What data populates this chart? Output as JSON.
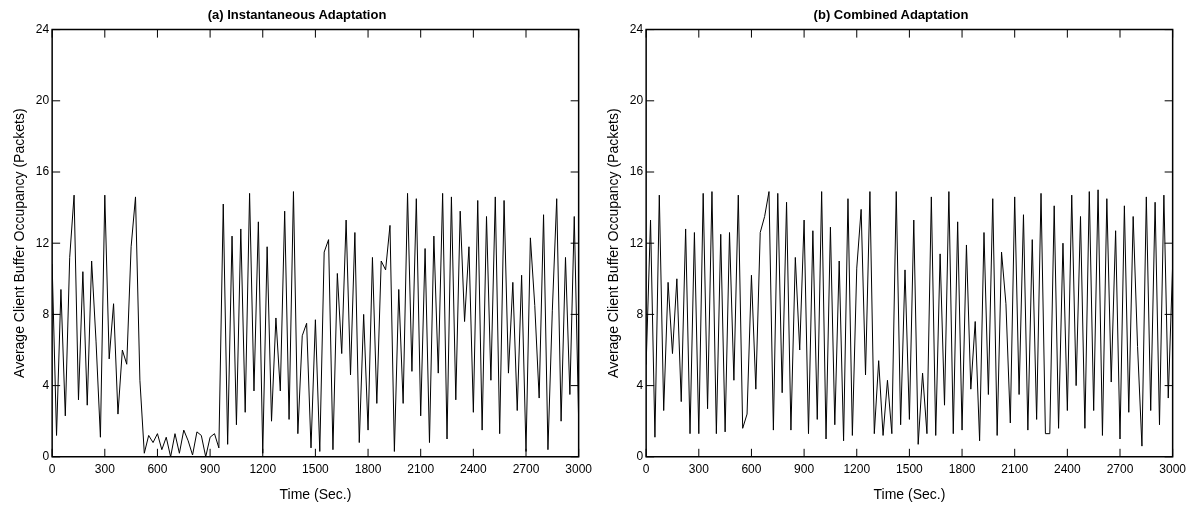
{
  "chart_data": [
    {
      "type": "line",
      "title": "(a) Instantaneous Adaptation",
      "xlabel": "Time (Sec.)",
      "ylabel": "Average Client Buffer Occupancy (Packets)",
      "color": "#000000",
      "marker": "none",
      "xlim": [
        0,
        3000
      ],
      "xticks": [
        0,
        300,
        600,
        900,
        1200,
        1500,
        1800,
        2100,
        2400,
        2700,
        3000
      ],
      "ylim": [
        0,
        24
      ],
      "yticks": [
        0,
        4,
        8,
        12,
        16,
        20,
        24
      ],
      "x": [
        0,
        25,
        50,
        75,
        100,
        125,
        150,
        175,
        200,
        225,
        250,
        275,
        300,
        325,
        350,
        375,
        400,
        425,
        450,
        475,
        500,
        525,
        550,
        575,
        600,
        625,
        650,
        675,
        700,
        725,
        750,
        775,
        800,
        825,
        850,
        875,
        900,
        925,
        950,
        975,
        1000,
        1025,
        1050,
        1075,
        1100,
        1125,
        1150,
        1175,
        1200,
        1225,
        1250,
        1275,
        1300,
        1325,
        1350,
        1375,
        1400,
        1425,
        1450,
        1475,
        1500,
        1525,
        1550,
        1575,
        1600,
        1625,
        1650,
        1675,
        1700,
        1725,
        1750,
        1775,
        1800,
        1825,
        1850,
        1875,
        1900,
        1925,
        1950,
        1975,
        2000,
        2025,
        2050,
        2075,
        2100,
        2125,
        2150,
        2175,
        2200,
        2225,
        2250,
        2275,
        2300,
        2325,
        2350,
        2375,
        2400,
        2425,
        2450,
        2475,
        2500,
        2525,
        2550,
        2575,
        2600,
        2625,
        2650,
        2675,
        2700,
        2725,
        2750,
        2775,
        2800,
        2825,
        2850,
        2875,
        2900,
        2925,
        2950,
        2975,
        3000
      ],
      "values": [
        10.8,
        1.2,
        9.4,
        2.3,
        11.2,
        14.7,
        3.2,
        10.4,
        2.9,
        11,
        6.5,
        1.1,
        14.7,
        5.5,
        8.6,
        2.4,
        6,
        5.2,
        11.8,
        14.6,
        4.3,
        0.2,
        1.2,
        0.8,
        1.3,
        0.4,
        1.1,
        0,
        1.3,
        0.2,
        1.5,
        0.9,
        0.1,
        1.4,
        1.2,
        0,
        1.1,
        1.3,
        0.5,
        14.2,
        0.7,
        12.4,
        1.8,
        12.8,
        2.5,
        14.8,
        3.7,
        13.2,
        0.2,
        11.8,
        2,
        7.8,
        3.7,
        13.8,
        2.1,
        14.9,
        1.3,
        6.8,
        7.5,
        0.5,
        7.7,
        0.3,
        11.5,
        12.2,
        0.4,
        10.3,
        5.8,
        13.3,
        4.6,
        12.6,
        0.8,
        8,
        1.5,
        11.2,
        3,
        11,
        10.5,
        13,
        0.3,
        9.4,
        3,
        14.8,
        4.8,
        14.5,
        2.3,
        11.7,
        0.8,
        12.4,
        4.7,
        14.8,
        1,
        14.6,
        3.2,
        13.8,
        7.6,
        11.8,
        2.5,
        14.4,
        1.5,
        13.5,
        4.3,
        14.6,
        1.3,
        14.4,
        4.7,
        9.8,
        2.6,
        10.2,
        0.3,
        12.3,
        8.5,
        3.3,
        13.6,
        0.4,
        8.2,
        14.5,
        2,
        11.2,
        3.5,
        13.5,
        2
      ]
    },
    {
      "type": "line",
      "title": "(b) Combined Adaptation",
      "xlabel": "Time (Sec.)",
      "ylabel": "Average Client Buffer Occupancy (Packets)",
      "color": "#000000",
      "marker": "none",
      "xlim": [
        0,
        3000
      ],
      "xticks": [
        0,
        300,
        600,
        900,
        1200,
        1500,
        1800,
        2100,
        2400,
        2700,
        3000
      ],
      "ylim": [
        0,
        24
      ],
      "yticks": [
        0,
        4,
        8,
        12,
        16,
        20,
        24
      ],
      "x": [
        0,
        25,
        50,
        75,
        100,
        125,
        150,
        175,
        200,
        225,
        250,
        275,
        300,
        325,
        350,
        375,
        400,
        425,
        450,
        475,
        500,
        525,
        550,
        575,
        600,
        625,
        650,
        675,
        700,
        725,
        750,
        775,
        800,
        825,
        850,
        875,
        900,
        925,
        950,
        975,
        1000,
        1025,
        1050,
        1075,
        1100,
        1125,
        1150,
        1175,
        1200,
        1225,
        1250,
        1275,
        1300,
        1325,
        1350,
        1375,
        1400,
        1425,
        1450,
        1475,
        1500,
        1525,
        1550,
        1575,
        1600,
        1625,
        1650,
        1675,
        1700,
        1725,
        1750,
        1775,
        1800,
        1825,
        1850,
        1875,
        1900,
        1925,
        1950,
        1975,
        2000,
        2025,
        2050,
        2075,
        2100,
        2125,
        2150,
        2175,
        2200,
        2225,
        2250,
        2275,
        2300,
        2325,
        2350,
        2375,
        2400,
        2425,
        2450,
        2475,
        2500,
        2525,
        2550,
        2575,
        2600,
        2625,
        2650,
        2675,
        2700,
        2725,
        2750,
        2775,
        2800,
        2825,
        2850,
        2875,
        2900,
        2925,
        2950,
        2975,
        3000
      ],
      "values": [
        5.2,
        13.3,
        1.1,
        14.7,
        2.6,
        9.8,
        5.8,
        10,
        3.1,
        12.8,
        1.3,
        12.6,
        1.3,
        14.8,
        2.7,
        14.9,
        1.3,
        12.5,
        1.4,
        12.6,
        4.3,
        14.7,
        1.6,
        2.4,
        10.2,
        3.8,
        12.6,
        13.5,
        14.9,
        1.5,
        14.8,
        3.6,
        14.3,
        1.5,
        11.2,
        6,
        13.3,
        1.3,
        12.7,
        2.1,
        14.9,
        1,
        12.9,
        1.8,
        11,
        0.9,
        14.5,
        1.2,
        10.6,
        13.9,
        4.6,
        14.9,
        1.3,
        5.4,
        1.2,
        4.3,
        1.3,
        14.9,
        1.8,
        10.5,
        2.1,
        13.3,
        0.7,
        4.7,
        1.3,
        14.6,
        1.2,
        11.4,
        2.9,
        14.9,
        1.3,
        13.2,
        1.5,
        11.9,
        3.8,
        7.6,
        0.9,
        12.6,
        3.5,
        14.5,
        1.2,
        11.5,
        8.6,
        1.9,
        14.6,
        3.5,
        13.6,
        1.5,
        12.2,
        2.1,
        14.8,
        1.3,
        1.3,
        14.1,
        1.6,
        12,
        2.6,
        14.7,
        4,
        13.5,
        1.6,
        14.9,
        2.6,
        15,
        1.2,
        14.5,
        4.2,
        12.7,
        1,
        14.1,
        2.5,
        13.5,
        6.2,
        0.6,
        14.6,
        2.6,
        14.3,
        1.8,
        14.7,
        3.3,
        10.8
      ]
    }
  ]
}
